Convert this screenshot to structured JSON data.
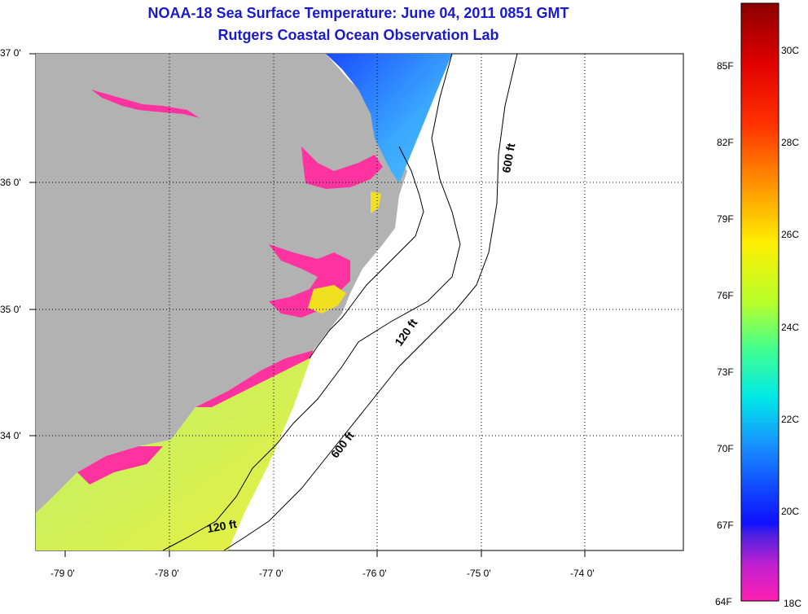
{
  "title": "NOAA-18 Sea Surface Temperature:  June 04, 2011 0851 GMT",
  "subtitle": "Rutgers Coastal Ocean Observation Lab",
  "lat_labels": [
    "37 0'",
    "36 0'",
    "35 0'",
    "34 0'"
  ],
  "lon_labels": [
    "-79 0'",
    "-78 0'",
    "-77 0'",
    "-76 0'",
    "-75 0'",
    "-74 0'"
  ],
  "depth_labels": {
    "upper_600": "600 ft",
    "mid_120": "120 ft",
    "lower_600": "600 ft",
    "lower_120": "120 ft"
  },
  "colorbar": {
    "fahrenheit": [
      "85F",
      "82F",
      "79F",
      "76F",
      "73F",
      "70F",
      "67F",
      "64F"
    ],
    "celsius": [
      "30C",
      "28C",
      "26C",
      "24C",
      "22C",
      "20C",
      "18C"
    ]
  },
  "colors": {
    "title": "#1a1acc",
    "land": "#b2b2b2",
    "ocean": "#ffffff",
    "cold": "#ff33a0",
    "cool": "#1a6aff",
    "warm": "#e6f040"
  }
}
